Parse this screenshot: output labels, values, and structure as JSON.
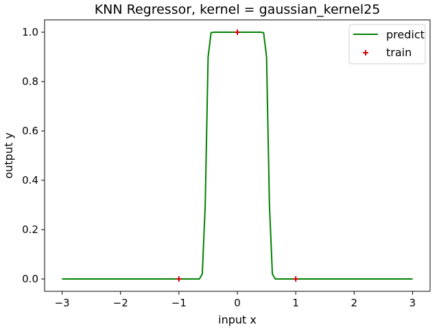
{
  "chart_data": {
    "type": "line",
    "title": "KNN Regressor, kernel = gaussian_kernel25",
    "xlabel": "input x",
    "ylabel": "output y",
    "xlim": [
      -3.3,
      3.3
    ],
    "ylim": [
      -0.05,
      1.05
    ],
    "xticks": [
      -3,
      -2,
      -1,
      0,
      1,
      2,
      3
    ],
    "xtick_labels": [
      "−3",
      "−2",
      "−1",
      "0",
      "1",
      "2",
      "3"
    ],
    "yticks": [
      0.0,
      0.2,
      0.4,
      0.6,
      0.8,
      1.0
    ],
    "ytick_labels": [
      "0.0",
      "0.2",
      "0.4",
      "0.6",
      "0.8",
      "1.0"
    ],
    "grid": false,
    "legend_position": "top-right",
    "series": [
      {
        "name": "predict",
        "kind": "line",
        "color": "#008000",
        "x": [
          -3.0,
          -0.65,
          -0.6,
          -0.55,
          -0.5,
          -0.45,
          -0.4,
          -0.35,
          -0.3,
          0.0,
          0.3,
          0.35,
          0.4,
          0.45,
          0.5,
          0.55,
          0.6,
          0.65,
          3.0
        ],
        "y": [
          0.0,
          0.0,
          0.02,
          0.3,
          0.9,
          0.998,
          1.0,
          1.0,
          1.0,
          1.0,
          1.0,
          1.0,
          1.0,
          0.998,
          0.9,
          0.3,
          0.02,
          0.0,
          0.0
        ]
      },
      {
        "name": "train",
        "kind": "scatter",
        "marker": "+",
        "color": "#cc0000",
        "x": [
          -1,
          0,
          1
        ],
        "y": [
          0,
          1,
          0
        ]
      }
    ]
  }
}
